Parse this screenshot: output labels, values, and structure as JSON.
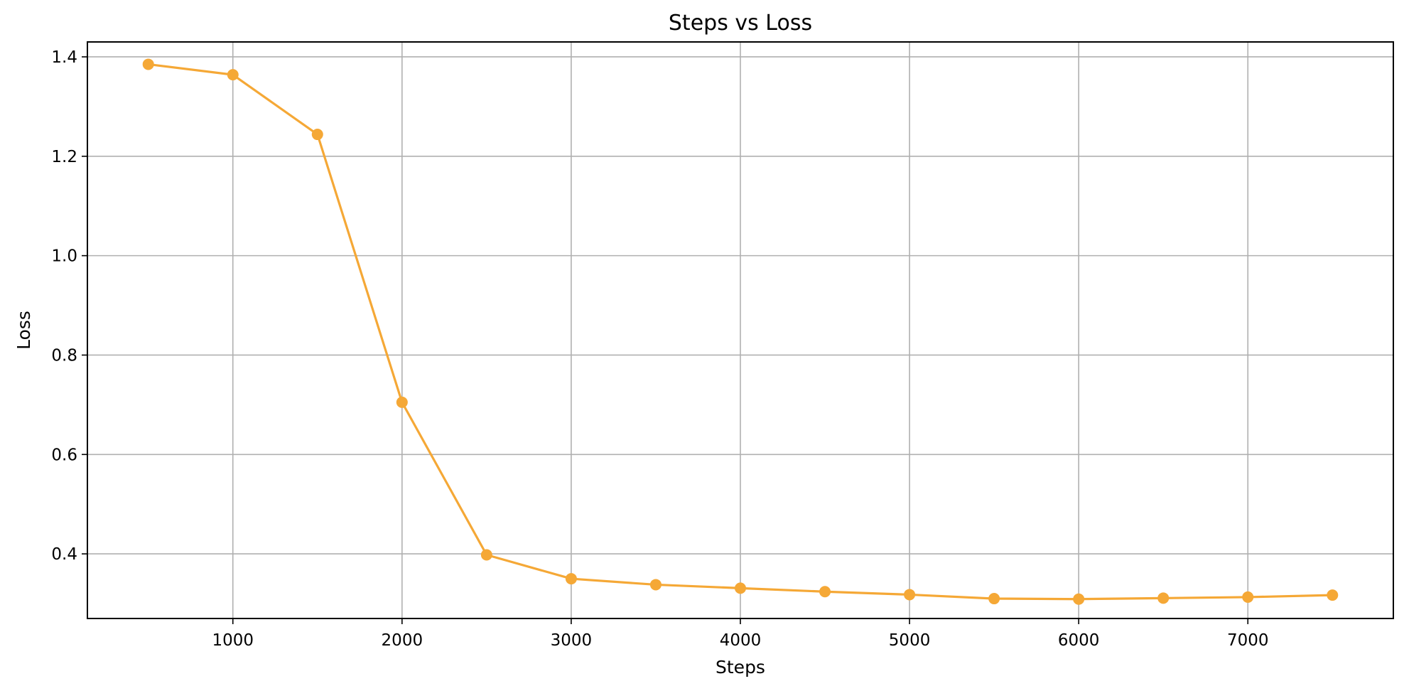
{
  "chart_data": {
    "type": "line",
    "title": "Steps vs Loss",
    "xlabel": "Steps",
    "ylabel": "Loss",
    "xlim": [
      140,
      7860
    ],
    "ylim": [
      0.27,
      1.43
    ],
    "xticks": [
      1000,
      2000,
      3000,
      4000,
      5000,
      6000,
      7000
    ],
    "yticks": [
      0.4,
      0.6,
      0.8,
      1.0,
      1.2,
      1.4
    ],
    "xtick_labels": [
      "1000",
      "2000",
      "3000",
      "4000",
      "5000",
      "6000",
      "7000"
    ],
    "ytick_labels": [
      "0.4",
      "0.6",
      "0.8",
      "1.0",
      "1.2",
      "1.4"
    ],
    "grid": true,
    "legend": "none",
    "marker": "circle",
    "series": [
      {
        "color": "#f5a836",
        "x": [
          500,
          1000,
          1500,
          2000,
          2500,
          3000,
          3500,
          4000,
          4500,
          5000,
          5500,
          6000,
          6500,
          7000,
          7500
        ],
        "y": [
          1.385,
          1.364,
          1.244,
          0.705,
          0.398,
          0.35,
          0.338,
          0.331,
          0.324,
          0.318,
          0.31,
          0.309,
          0.311,
          0.313,
          0.317
        ]
      }
    ]
  }
}
